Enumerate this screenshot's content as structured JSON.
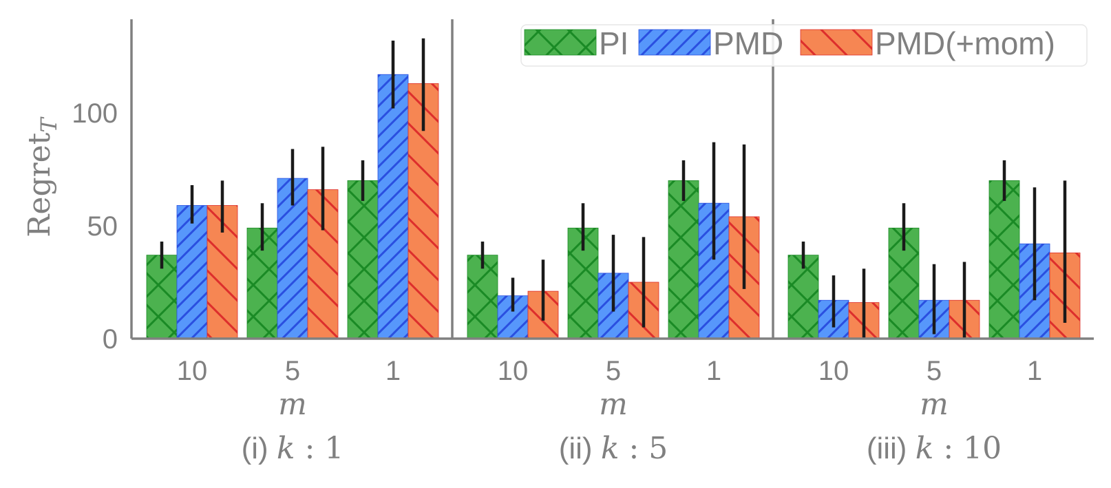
{
  "chart_data": {
    "type": "bar",
    "ylabel": "Regret",
    "ylabel_subscript": "T",
    "ylim": [
      0,
      142
    ],
    "yticks": [
      0,
      50,
      100
    ],
    "xlabel": "m",
    "categories": [
      "10",
      "5",
      "1"
    ],
    "series_meta": [
      {
        "name": "PI",
        "color": "#4cb24f",
        "hatch_color": "#1a8a25",
        "hatch": "x"
      },
      {
        "name": "PMD",
        "color": "#5797fb",
        "hatch_color": "#2a4fe0",
        "hatch": "/"
      },
      {
        "name": "PMD(+mom)",
        "color": "#f68653",
        "hatch_color": "#dd2e2c",
        "hatch": "\\"
      }
    ],
    "panels": [
      {
        "label": "(i)",
        "k_label": "k",
        "k_value": "1",
        "series": [
          {
            "name": "PI",
            "values": [
              37,
              49,
              70
            ],
            "err_low": [
              31,
              39,
              61
            ],
            "err_high": [
              43,
              60,
              79
            ]
          },
          {
            "name": "PMD",
            "values": [
              59,
              71,
              117
            ],
            "err_low": [
              51,
              59,
              102
            ],
            "err_high": [
              68,
              84,
              132
            ]
          },
          {
            "name": "PMD(+mom)",
            "values": [
              59,
              66,
              113
            ],
            "err_low": [
              47,
              48,
              92
            ],
            "err_high": [
              70,
              85,
              133
            ]
          }
        ]
      },
      {
        "label": "(ii)",
        "k_label": "k",
        "k_value": "5",
        "series": [
          {
            "name": "PI",
            "values": [
              37,
              49,
              70
            ],
            "err_low": [
              31,
              39,
              61
            ],
            "err_high": [
              43,
              60,
              79
            ]
          },
          {
            "name": "PMD",
            "values": [
              19,
              29,
              60
            ],
            "err_low": [
              12,
              12,
              35
            ],
            "err_high": [
              27,
              46,
              87
            ]
          },
          {
            "name": "PMD(+mom)",
            "values": [
              21,
              25,
              54
            ],
            "err_low": [
              8,
              5,
              22
            ],
            "err_high": [
              35,
              45,
              86
            ]
          }
        ]
      },
      {
        "label": "(iii)",
        "k_label": "k",
        "k_value": "10",
        "series": [
          {
            "name": "PI",
            "values": [
              37,
              49,
              70
            ],
            "err_low": [
              31,
              39,
              61
            ],
            "err_high": [
              43,
              60,
              79
            ]
          },
          {
            "name": "PMD",
            "values": [
              17,
              17,
              42
            ],
            "err_low": [
              5,
              2,
              17
            ],
            "err_high": [
              28,
              33,
              67
            ]
          },
          {
            "name": "PMD(+mom)",
            "values": [
              16,
              17,
              38
            ],
            "err_low": [
              0,
              0,
              7
            ],
            "err_high": [
              31,
              34,
              70
            ]
          }
        ]
      }
    ]
  }
}
